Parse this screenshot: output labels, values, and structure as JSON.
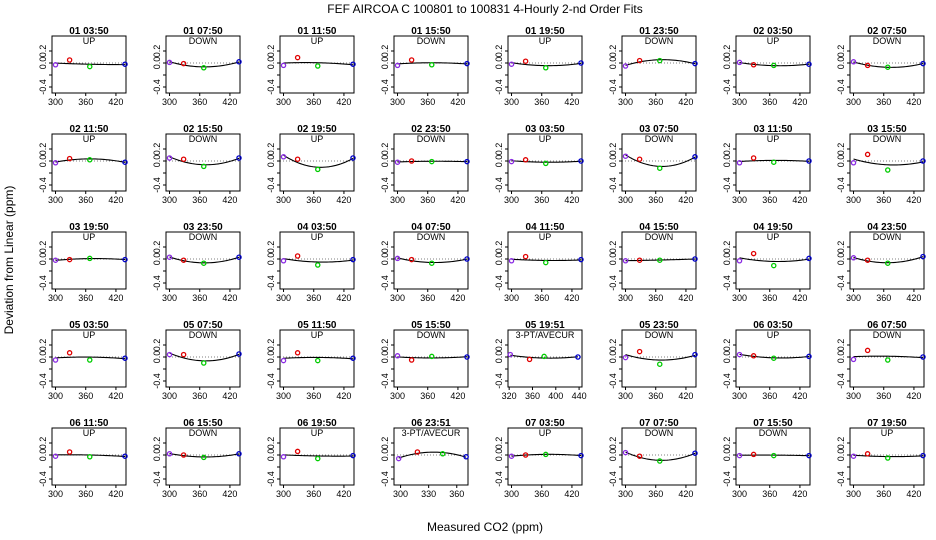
{
  "figure": {
    "title": "FEF   AIRCOA C   100801 to 100831   4-Hourly 2-nd Order Fits",
    "xlabel": "Measured CO2 (ppm)",
    "ylabel": "Deviation from Linear (ppm)"
  },
  "chart_data": {
    "type": "scatter",
    "ylim": [
      -0.5,
      0.45
    ],
    "yticks": [
      -0.4,
      -0.2,
      0.0,
      0.2
    ],
    "ytick_labels": [
      "-0.4",
      "",
      "0.0",
      "0.2"
    ],
    "default_xlim": [
      293,
      440
    ],
    "default_xticks": [
      300,
      360,
      420
    ],
    "marker_colors": [
      "#8a2be2",
      "#e00000",
      "#00cc00",
      "#0000cc"
    ],
    "panels": [
      {
        "title": "01 03:50",
        "label": "UP",
        "points": [
          [
            300,
            -0.03
          ],
          [
            328,
            0.05
          ],
          [
            368,
            -0.06
          ],
          [
            438,
            -0.02
          ]
        ]
      },
      {
        "title": "01 07:50",
        "label": "DOWN",
        "points": [
          [
            300,
            0.01
          ],
          [
            328,
            -0.01
          ],
          [
            368,
            -0.08
          ],
          [
            438,
            0.02
          ]
        ]
      },
      {
        "title": "01 11:50",
        "label": "UP",
        "points": [
          [
            300,
            -0.04
          ],
          [
            328,
            0.09
          ],
          [
            368,
            -0.05
          ],
          [
            438,
            -0.02
          ]
        ]
      },
      {
        "title": "01 15:50",
        "label": "DOWN",
        "points": [
          [
            300,
            -0.04
          ],
          [
            328,
            0.05
          ],
          [
            368,
            -0.03
          ],
          [
            438,
            -0.01
          ]
        ]
      },
      {
        "title": "01 19:50",
        "label": "UP",
        "points": [
          [
            300,
            -0.02
          ],
          [
            328,
            0.03
          ],
          [
            368,
            -0.08
          ],
          [
            438,
            0.0
          ]
        ]
      },
      {
        "title": "01 23:50",
        "label": "DOWN",
        "points": [
          [
            300,
            -0.05
          ],
          [
            328,
            0.04
          ],
          [
            368,
            0.04
          ],
          [
            438,
            -0.01
          ]
        ]
      },
      {
        "title": "02 03:50",
        "label": "UP",
        "points": [
          [
            300,
            0.01
          ],
          [
            328,
            -0.03
          ],
          [
            368,
            -0.04
          ],
          [
            438,
            -0.02
          ]
        ]
      },
      {
        "title": "02 07:50",
        "label": "DOWN",
        "points": [
          [
            300,
            0.02
          ],
          [
            328,
            -0.04
          ],
          [
            368,
            -0.07
          ],
          [
            438,
            -0.01
          ]
        ]
      },
      {
        "title": "02 11:50",
        "label": "UP",
        "points": [
          [
            300,
            -0.03
          ],
          [
            328,
            0.04
          ],
          [
            368,
            0.02
          ],
          [
            438,
            -0.02
          ]
        ]
      },
      {
        "title": "02 15:50",
        "label": "DOWN",
        "points": [
          [
            300,
            0.05
          ],
          [
            328,
            0.03
          ],
          [
            368,
            -0.09
          ],
          [
            438,
            0.05
          ]
        ]
      },
      {
        "title": "02 19:50",
        "label": "UP",
        "points": [
          [
            300,
            0.07
          ],
          [
            328,
            0.03
          ],
          [
            368,
            -0.14
          ],
          [
            438,
            0.05
          ]
        ]
      },
      {
        "title": "02 23:50",
        "label": "DOWN",
        "points": [
          [
            300,
            -0.02
          ],
          [
            328,
            0.0
          ],
          [
            368,
            -0.01
          ],
          [
            438,
            -0.01
          ]
        ]
      },
      {
        "title": "03 03:50",
        "label": "UP",
        "points": [
          [
            300,
            -0.01
          ],
          [
            328,
            0.02
          ],
          [
            368,
            -0.04
          ],
          [
            438,
            0.0
          ]
        ]
      },
      {
        "title": "03 07:50",
        "label": "DOWN",
        "points": [
          [
            300,
            0.08
          ],
          [
            328,
            0.03
          ],
          [
            368,
            -0.12
          ],
          [
            438,
            0.07
          ]
        ]
      },
      {
        "title": "03 11:50",
        "label": "UP",
        "points": [
          [
            300,
            -0.03
          ],
          [
            328,
            0.05
          ],
          [
            368,
            -0.02
          ],
          [
            438,
            0.0
          ]
        ]
      },
      {
        "title": "03 15:50",
        "label": "DOWN",
        "points": [
          [
            300,
            -0.03
          ],
          [
            328,
            0.11
          ],
          [
            368,
            -0.15
          ],
          [
            438,
            0.0
          ]
        ]
      },
      {
        "title": "03 19:50",
        "label": "UP",
        "points": [
          [
            300,
            -0.02
          ],
          [
            328,
            -0.01
          ],
          [
            368,
            0.01
          ],
          [
            438,
            -0.01
          ]
        ]
      },
      {
        "title": "03 23:50",
        "label": "DOWN",
        "points": [
          [
            300,
            0.03
          ],
          [
            328,
            -0.02
          ],
          [
            368,
            -0.07
          ],
          [
            438,
            0.03
          ]
        ]
      },
      {
        "title": "04 03:50",
        "label": "UP",
        "points": [
          [
            300,
            -0.03
          ],
          [
            328,
            0.05
          ],
          [
            368,
            -0.1
          ],
          [
            438,
            -0.01
          ]
        ]
      },
      {
        "title": "04 07:50",
        "label": "DOWN",
        "points": [
          [
            300,
            0.01
          ],
          [
            328,
            -0.01
          ],
          [
            368,
            -0.07
          ],
          [
            438,
            0.0
          ]
        ]
      },
      {
        "title": "04 11:50",
        "label": "UP",
        "points": [
          [
            300,
            -0.03
          ],
          [
            328,
            0.04
          ],
          [
            368,
            -0.06
          ],
          [
            438,
            -0.01
          ]
        ]
      },
      {
        "title": "04 15:50",
        "label": "DOWN",
        "points": [
          [
            300,
            -0.03
          ],
          [
            328,
            -0.02
          ],
          [
            368,
            -0.02
          ],
          [
            438,
            0.0
          ]
        ]
      },
      {
        "title": "04 19:50",
        "label": "UP",
        "points": [
          [
            300,
            -0.03
          ],
          [
            328,
            0.09
          ],
          [
            368,
            -0.11
          ],
          [
            438,
            0.01
          ]
        ]
      },
      {
        "title": "04 23:50",
        "label": "DOWN",
        "points": [
          [
            300,
            0.02
          ],
          [
            328,
            -0.02
          ],
          [
            368,
            -0.07
          ],
          [
            438,
            0.04
          ]
        ]
      },
      {
        "title": "05 03:50",
        "label": "UP",
        "points": [
          [
            300,
            -0.05
          ],
          [
            328,
            0.07
          ],
          [
            368,
            -0.05
          ],
          [
            438,
            -0.02
          ]
        ]
      },
      {
        "title": "05 07:50",
        "label": "DOWN",
        "points": [
          [
            300,
            0.04
          ],
          [
            328,
            0.04
          ],
          [
            368,
            -0.1
          ],
          [
            438,
            0.05
          ]
        ]
      },
      {
        "title": "05 11:50",
        "label": "UP",
        "points": [
          [
            300,
            -0.06
          ],
          [
            328,
            0.07
          ],
          [
            368,
            -0.06
          ],
          [
            438,
            -0.02
          ]
        ]
      },
      {
        "title": "05 15:50",
        "label": "DOWN",
        "points": [
          [
            300,
            0.02
          ],
          [
            328,
            -0.05
          ],
          [
            368,
            0.01
          ],
          [
            438,
            0.0
          ]
        ]
      },
      {
        "title": "05 19:51",
        "label": "3-PT/AVECUR",
        "points": [
          [
            322,
            0.04
          ],
          [
            355,
            -0.04
          ],
          [
            380,
            0.01
          ],
          [
            438,
            0.0
          ]
        ],
        "xlim": [
          318,
          445
        ],
        "xticks": [
          320,
          360,
          400,
          440
        ]
      },
      {
        "title": "05 23:50",
        "label": "DOWN",
        "points": [
          [
            300,
            -0.01
          ],
          [
            328,
            0.09
          ],
          [
            368,
            -0.12
          ],
          [
            438,
            0.04
          ]
        ]
      },
      {
        "title": "06 03:50",
        "label": "UP",
        "points": [
          [
            300,
            0.04
          ],
          [
            328,
            0.02
          ],
          [
            368,
            -0.02
          ],
          [
            438,
            0.01
          ]
        ]
      },
      {
        "title": "06 07:50",
        "label": "DOWN",
        "points": [
          [
            300,
            -0.04
          ],
          [
            328,
            0.11
          ],
          [
            368,
            -0.05
          ],
          [
            438,
            0.0
          ]
        ]
      },
      {
        "title": "06 11:50",
        "label": "UP",
        "points": [
          [
            300,
            -0.02
          ],
          [
            328,
            0.05
          ],
          [
            368,
            -0.03
          ],
          [
            438,
            -0.02
          ]
        ]
      },
      {
        "title": "06 15:50",
        "label": "DOWN",
        "points": [
          [
            300,
            0.02
          ],
          [
            328,
            0.0
          ],
          [
            368,
            -0.04
          ],
          [
            438,
            0.02
          ]
        ]
      },
      {
        "title": "06 19:50",
        "label": "UP",
        "points": [
          [
            300,
            -0.03
          ],
          [
            328,
            0.06
          ],
          [
            368,
            -0.06
          ],
          [
            438,
            -0.01
          ]
        ]
      },
      {
        "title": "06 23:51",
        "label": "3-PT/AVECUR",
        "points": [
          [
            298,
            -0.06
          ],
          [
            318,
            0.05
          ],
          [
            345,
            0.02
          ],
          [
            370,
            -0.03
          ]
        ],
        "xlim": [
          293,
          372
        ],
        "xticks": [
          300,
          330,
          360
        ]
      },
      {
        "title": "07 03:50",
        "label": "UP",
        "points": [
          [
            300,
            -0.02
          ],
          [
            328,
            0.0
          ],
          [
            368,
            0.01
          ],
          [
            438,
            -0.01
          ]
        ]
      },
      {
        "title": "07 07:50",
        "label": "DOWN",
        "points": [
          [
            300,
            0.04
          ],
          [
            328,
            -0.02
          ],
          [
            368,
            -0.1
          ],
          [
            438,
            0.03
          ]
        ]
      },
      {
        "title": "07 15:50",
        "label": "DOWN",
        "points": [
          [
            300,
            -0.01
          ],
          [
            328,
            0.01
          ],
          [
            368,
            -0.01
          ],
          [
            438,
            -0.01
          ]
        ]
      },
      {
        "title": "07 19:50",
        "label": "UP",
        "points": [
          [
            300,
            -0.02
          ],
          [
            328,
            0.02
          ],
          [
            368,
            -0.05
          ],
          [
            438,
            -0.01
          ]
        ]
      }
    ]
  }
}
